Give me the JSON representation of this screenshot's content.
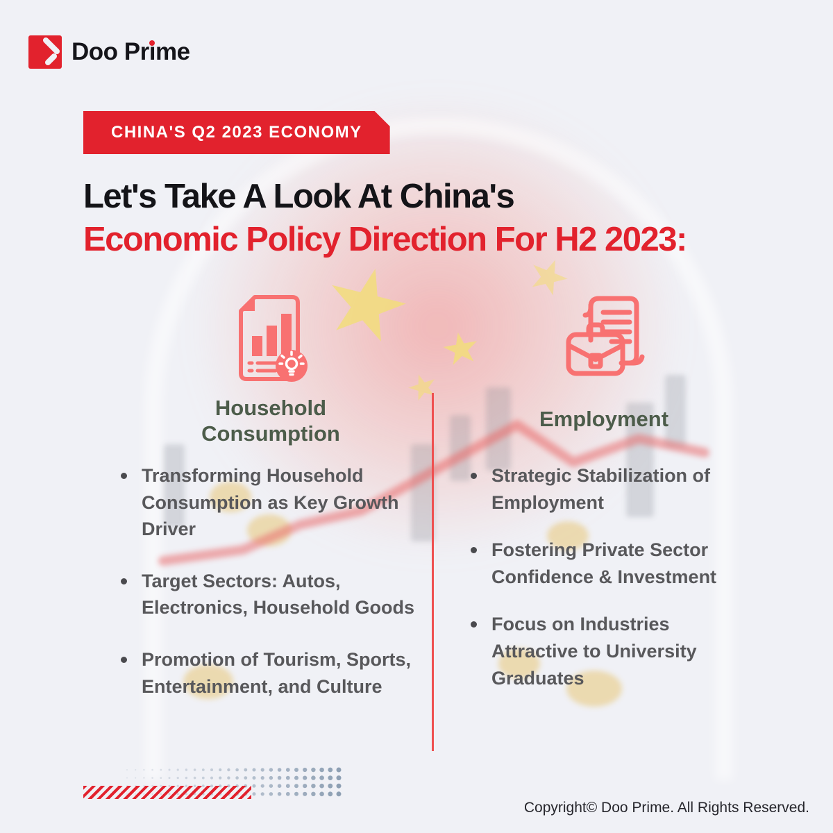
{
  "brand": {
    "name": "Doo Prime",
    "name_parts": {
      "pre": "Doo Pr",
      "i_base": "ı",
      "post": "me"
    }
  },
  "banner": {
    "label": "CHINA'S Q2 2023 ECONOMY"
  },
  "title": {
    "line1": "Let's Take A Look At China's",
    "line2": "Economic Policy Direction For H2 2023:"
  },
  "columns": {
    "household": {
      "header": "Household Consumption",
      "icon": "report-chart-lightbulb-icon",
      "bullets": [
        "Transforming Household Consumption as Key Growth Driver",
        "Target Sectors: Autos, Electronics, Household Goods",
        "Promotion of Tourism, Sports, Entertainment, and Culture"
      ]
    },
    "employment": {
      "header": "Employment",
      "icon": "briefcase-document-icon",
      "bullets": [
        "Strategic Stabilization of Employment",
        "Fostering Private Sector Confidence & Investment",
        "Focus on Industries Attractive to University Graduates"
      ]
    }
  },
  "footer": {
    "copyright": "Copyright© Doo Prime. All Rights Reserved."
  },
  "colors": {
    "accent_red": "#e2222d",
    "icon_salmon": "#f87171",
    "header_green": "#4c5c4a",
    "body_gray": "#58585b",
    "divider_red": "#ef5050",
    "dots_blue_gray": "#8d9fb3",
    "background": "#f0f1f6"
  }
}
